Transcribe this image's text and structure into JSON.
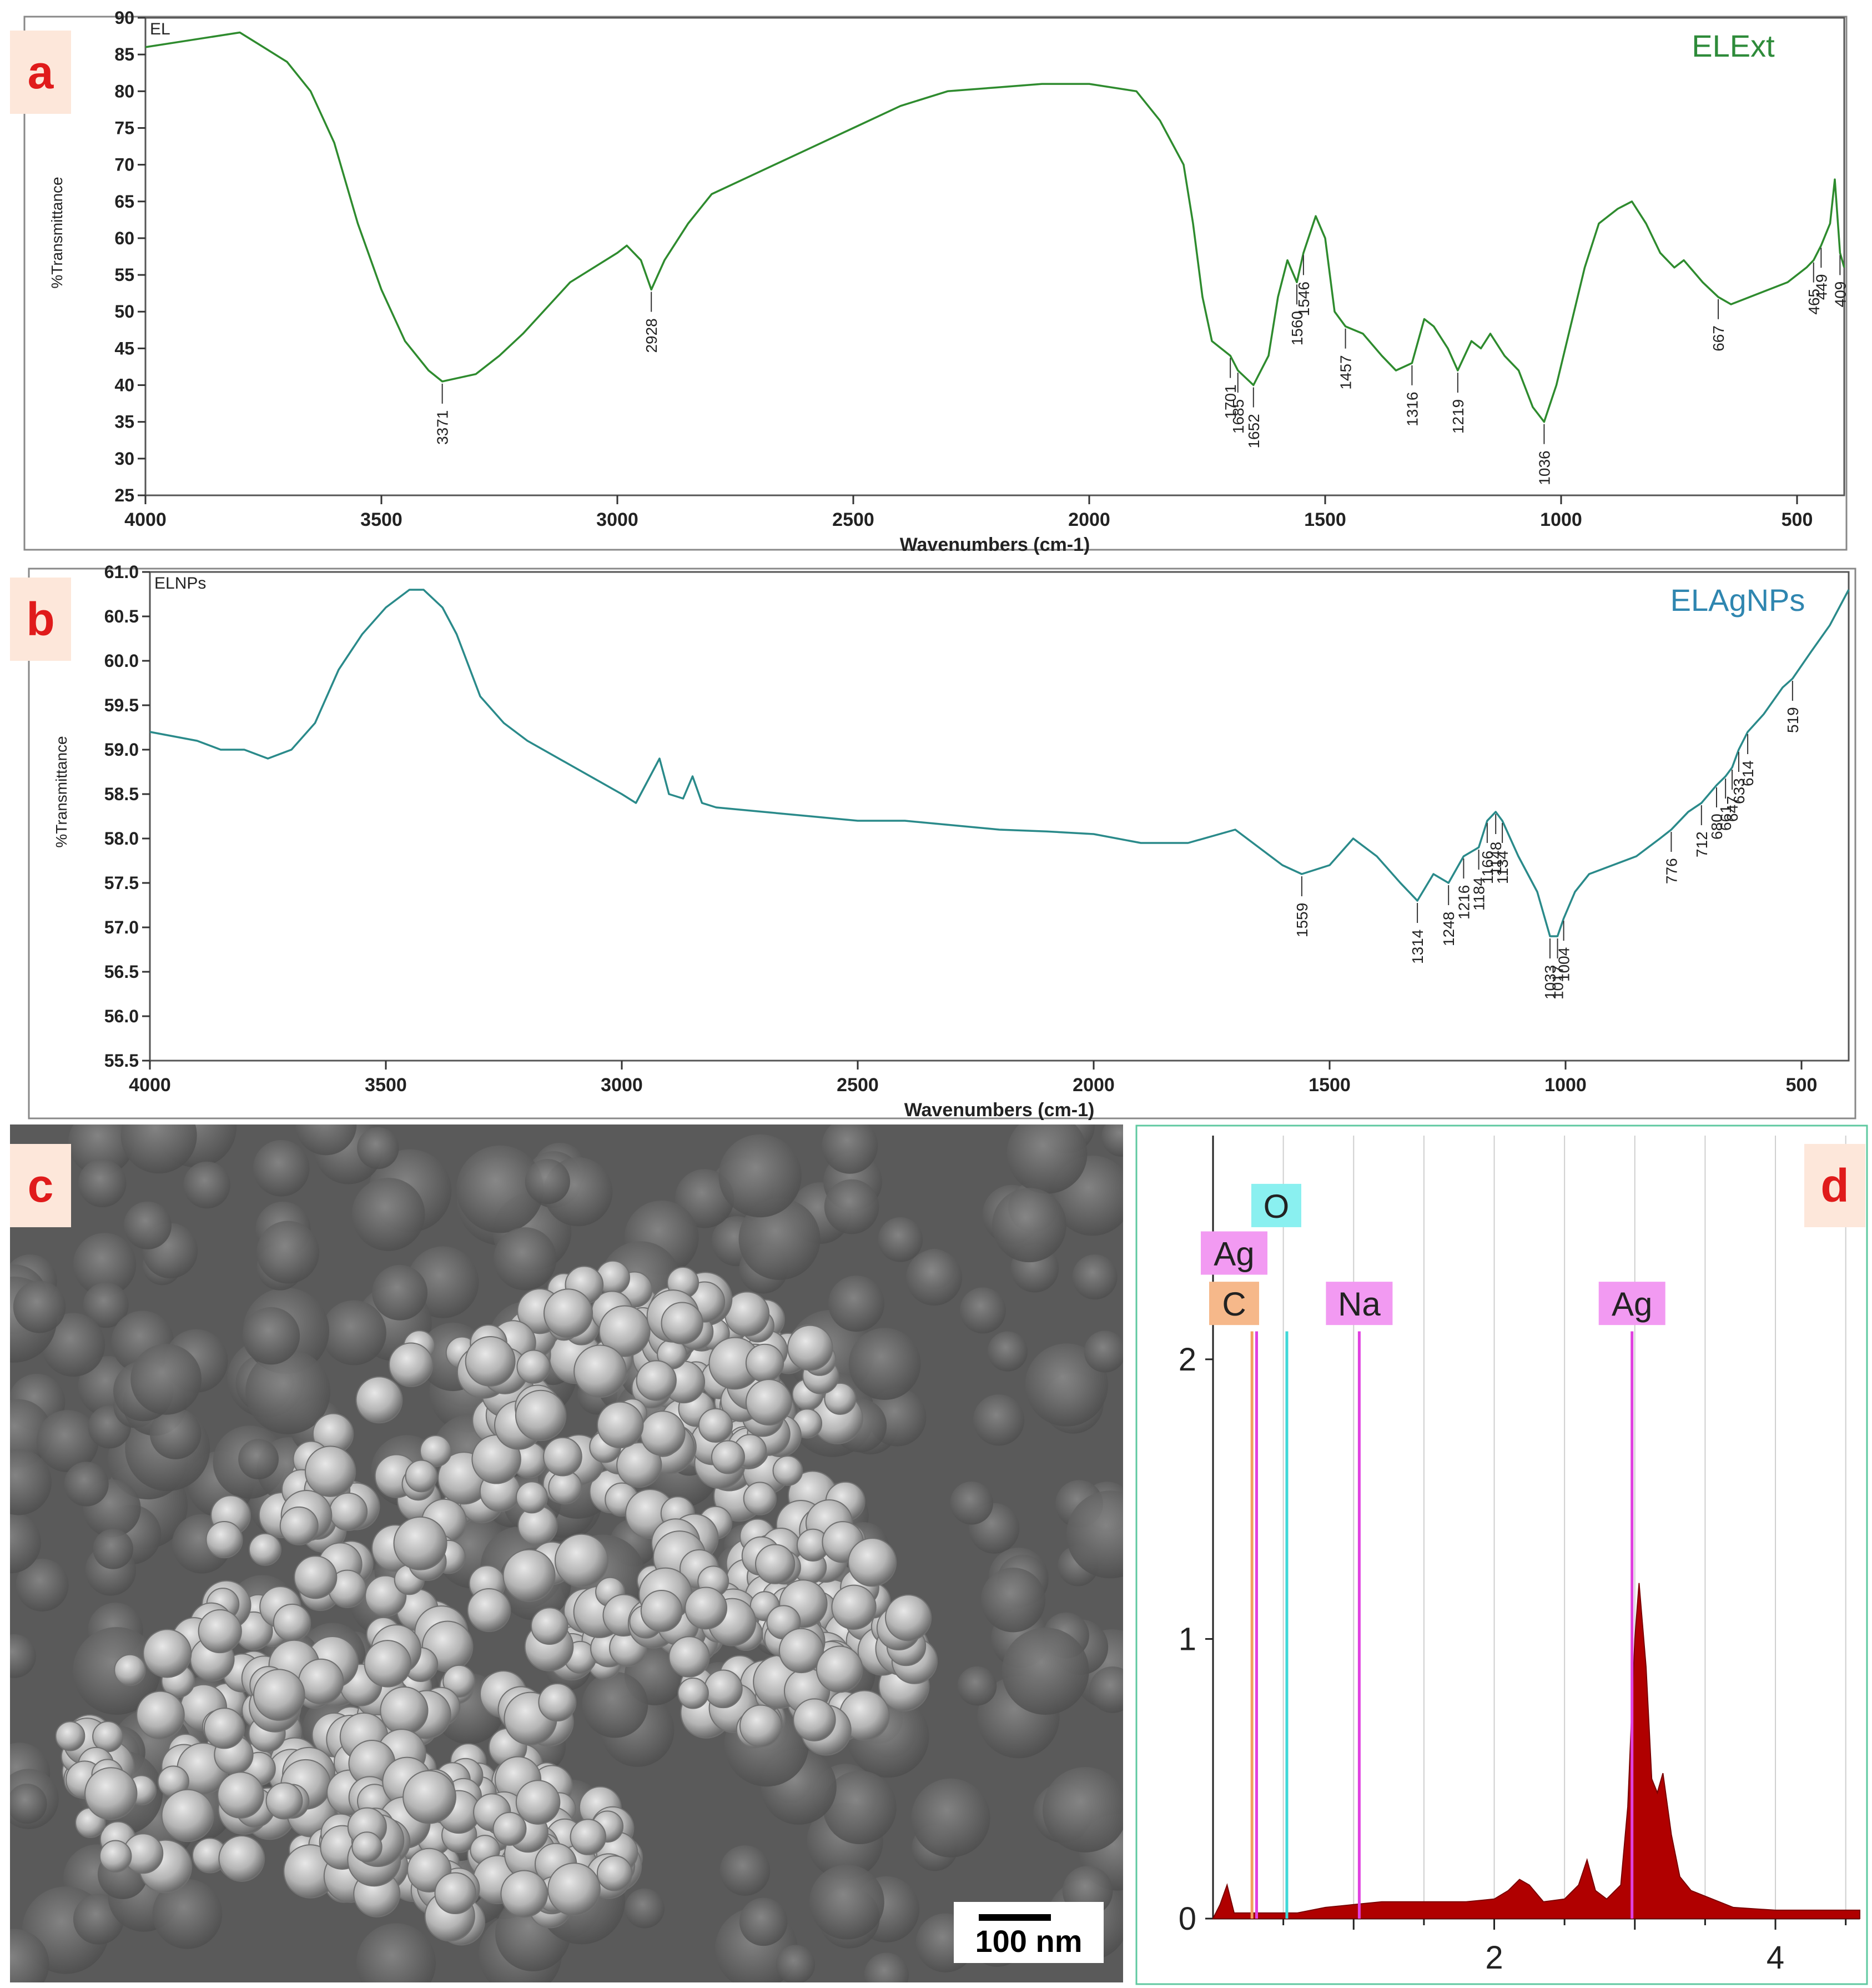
{
  "panels": {
    "a": {
      "tag": "a"
    },
    "b": {
      "tag": "b"
    },
    "c": {
      "tag": "c",
      "scale_bar": "100 nm"
    },
    "d": {
      "tag": "d"
    }
  },
  "colors": {
    "ftir_a": "#2e8b2e",
    "ftir_b": "#2a8a8a",
    "label_a": "#2e8b3a",
    "label_b": "#2f86b0",
    "tag_bg": "#fde7da",
    "tag_text": "#e01b1b",
    "eds_fill": "#b00000",
    "peak_magenta": "#e040e0",
    "peak_cyan": "#3fd8d8",
    "peak_orange": "#f2a05f",
    "box_magenta": "#f29af2",
    "box_cyan": "#8af0f0",
    "box_orange": "#f6b88a"
  },
  "chart_data": [
    {
      "type": "line",
      "panel": "a",
      "corner_label": "EL",
      "series_label": "ELExt",
      "xlabel": "Wavenumbers (cm-1)",
      "ylabel": "%Transmittance",
      "xlim": [
        4000,
        400
      ],
      "ylim": [
        25,
        90
      ],
      "x_reversed": true,
      "xticks": [
        4000,
        3500,
        3000,
        2500,
        2000,
        1500,
        1000,
        500
      ],
      "yticks": [
        25,
        30,
        35,
        40,
        45,
        50,
        55,
        60,
        65,
        70,
        75,
        80,
        85,
        90
      ],
      "curve": [
        [
          4000,
          86
        ],
        [
          3900,
          87
        ],
        [
          3800,
          88
        ],
        [
          3750,
          86
        ],
        [
          3700,
          84
        ],
        [
          3650,
          80
        ],
        [
          3600,
          73
        ],
        [
          3550,
          62
        ],
        [
          3500,
          53
        ],
        [
          3450,
          46
        ],
        [
          3400,
          42
        ],
        [
          3371,
          40.5
        ],
        [
          3300,
          41.5
        ],
        [
          3250,
          44
        ],
        [
          3200,
          47
        ],
        [
          3100,
          54
        ],
        [
          3000,
          58
        ],
        [
          2980,
          59
        ],
        [
          2950,
          57
        ],
        [
          2928,
          53
        ],
        [
          2900,
          57
        ],
        [
          2850,
          62
        ],
        [
          2800,
          66
        ],
        [
          2700,
          69
        ],
        [
          2600,
          72
        ],
        [
          2500,
          75
        ],
        [
          2400,
          78
        ],
        [
          2300,
          80
        ],
        [
          2200,
          80.5
        ],
        [
          2100,
          81
        ],
        [
          2000,
          81
        ],
        [
          1900,
          80
        ],
        [
          1850,
          76
        ],
        [
          1800,
          70
        ],
        [
          1780,
          62
        ],
        [
          1760,
          52
        ],
        [
          1740,
          46
        ],
        [
          1701,
          44
        ],
        [
          1685,
          42
        ],
        [
          1652,
          40
        ],
        [
          1620,
          44
        ],
        [
          1600,
          52
        ],
        [
          1580,
          57
        ],
        [
          1560,
          54
        ],
        [
          1546,
          58
        ],
        [
          1520,
          63
        ],
        [
          1500,
          60
        ],
        [
          1480,
          50
        ],
        [
          1457,
          48
        ],
        [
          1420,
          47
        ],
        [
          1380,
          44
        ],
        [
          1350,
          42
        ],
        [
          1316,
          43
        ],
        [
          1290,
          49
        ],
        [
          1270,
          48
        ],
        [
          1240,
          45
        ],
        [
          1219,
          42
        ],
        [
          1190,
          46
        ],
        [
          1170,
          45
        ],
        [
          1150,
          47
        ],
        [
          1120,
          44
        ],
        [
          1090,
          42
        ],
        [
          1060,
          37
        ],
        [
          1036,
          35
        ],
        [
          1010,
          40
        ],
        [
          980,
          48
        ],
        [
          950,
          56
        ],
        [
          920,
          62
        ],
        [
          880,
          64
        ],
        [
          850,
          65
        ],
        [
          820,
          62
        ],
        [
          790,
          58
        ],
        [
          760,
          56
        ],
        [
          740,
          57
        ],
        [
          700,
          54
        ],
        [
          667,
          52
        ],
        [
          640,
          51
        ],
        [
          600,
          52
        ],
        [
          560,
          53
        ],
        [
          520,
          54
        ],
        [
          480,
          56
        ],
        [
          465,
          57
        ],
        [
          449,
          59
        ],
        [
          430,
          62
        ],
        [
          420,
          68
        ],
        [
          409,
          58
        ],
        [
          400,
          56
        ]
      ],
      "peak_labels": [
        "3371",
        "2928",
        "1701",
        "1685",
        "1652",
        "1560",
        "1546",
        "1457",
        "1316",
        "1219",
        "1036",
        "667",
        "465",
        "449",
        "409"
      ],
      "peak_x": [
        3371,
        2928,
        1701,
        1685,
        1652,
        1560,
        1546,
        1457,
        1316,
        1219,
        1036,
        667,
        465,
        449,
        409
      ]
    },
    {
      "type": "line",
      "panel": "b",
      "corner_label": "ELNPs",
      "series_label": "ELAgNPs",
      "xlabel": "Wavenumbers (cm-1)",
      "ylabel": "%Transmittance",
      "xlim": [
        4000,
        400
      ],
      "ylim": [
        55.5,
        61.0
      ],
      "x_reversed": true,
      "xticks": [
        4000,
        3500,
        3000,
        2500,
        2000,
        1500,
        1000,
        500
      ],
      "yticks": [
        55.5,
        56.0,
        56.5,
        57.0,
        57.5,
        58.0,
        58.5,
        59.0,
        59.5,
        60.0,
        60.5,
        61.0
      ],
      "curve": [
        [
          4000,
          59.2
        ],
        [
          3900,
          59.1
        ],
        [
          3850,
          59.0
        ],
        [
          3800,
          59.0
        ],
        [
          3750,
          58.9
        ],
        [
          3700,
          59.0
        ],
        [
          3650,
          59.3
        ],
        [
          3600,
          59.9
        ],
        [
          3550,
          60.3
        ],
        [
          3500,
          60.6
        ],
        [
          3450,
          60.8
        ],
        [
          3420,
          60.8
        ],
        [
          3380,
          60.6
        ],
        [
          3350,
          60.3
        ],
        [
          3300,
          59.6
        ],
        [
          3250,
          59.3
        ],
        [
          3200,
          59.1
        ],
        [
          3100,
          58.8
        ],
        [
          3000,
          58.5
        ],
        [
          2970,
          58.4
        ],
        [
          2950,
          58.6
        ],
        [
          2920,
          58.9
        ],
        [
          2900,
          58.5
        ],
        [
          2870,
          58.45
        ],
        [
          2850,
          58.7
        ],
        [
          2830,
          58.4
        ],
        [
          2800,
          58.35
        ],
        [
          2700,
          58.3
        ],
        [
          2600,
          58.25
        ],
        [
          2500,
          58.2
        ],
        [
          2400,
          58.2
        ],
        [
          2300,
          58.15
        ],
        [
          2200,
          58.1
        ],
        [
          2100,
          58.08
        ],
        [
          2000,
          58.05
        ],
        [
          1900,
          57.95
        ],
        [
          1800,
          57.95
        ],
        [
          1700,
          58.1
        ],
        [
          1650,
          57.9
        ],
        [
          1600,
          57.7
        ],
        [
          1559,
          57.6
        ],
        [
          1500,
          57.7
        ],
        [
          1450,
          58.0
        ],
        [
          1400,
          57.8
        ],
        [
          1350,
          57.5
        ],
        [
          1314,
          57.3
        ],
        [
          1280,
          57.6
        ],
        [
          1248,
          57.5
        ],
        [
          1216,
          57.8
        ],
        [
          1184,
          57.9
        ],
        [
          1166,
          58.2
        ],
        [
          1148,
          58.3
        ],
        [
          1134,
          58.2
        ],
        [
          1100,
          57.8
        ],
        [
          1060,
          57.4
        ],
        [
          1033,
          56.9
        ],
        [
          1017,
          56.9
        ],
        [
          1004,
          57.1
        ],
        [
          980,
          57.4
        ],
        [
          950,
          57.6
        ],
        [
          900,
          57.7
        ],
        [
          850,
          57.8
        ],
        [
          800,
          58.0
        ],
        [
          776,
          58.1
        ],
        [
          740,
          58.3
        ],
        [
          712,
          58.4
        ],
        [
          680,
          58.6
        ],
        [
          661,
          58.7
        ],
        [
          647,
          58.8
        ],
        [
          633,
          59.0
        ],
        [
          614,
          59.2
        ],
        [
          580,
          59.4
        ],
        [
          540,
          59.7
        ],
        [
          519,
          59.8
        ],
        [
          480,
          60.1
        ],
        [
          440,
          60.4
        ],
        [
          420,
          60.6
        ],
        [
          400,
          60.8
        ]
      ],
      "peak_labels": [
        "1559",
        "1314",
        "1248",
        "1216",
        "1184",
        "1166",
        "1148",
        "1134",
        "1033",
        "1017",
        "1004",
        "776",
        "712",
        "680",
        "661",
        "647",
        "633",
        "614",
        "519"
      ],
      "peak_x": [
        1559,
        1314,
        1248,
        1216,
        1184,
        1166,
        1148,
        1134,
        1033,
        1017,
        1004,
        776,
        712,
        680,
        661,
        647,
        633,
        614,
        519
      ]
    },
    {
      "type": "area",
      "panel": "d",
      "xlim": [
        0.0,
        4.6
      ],
      "ylim": [
        0,
        2.8
      ],
      "xticks": [
        2,
        4
      ],
      "yticks": [
        0,
        1,
        2
      ],
      "spectrum": [
        [
          0.0,
          0.0
        ],
        [
          0.05,
          0.05
        ],
        [
          0.1,
          0.12
        ],
        [
          0.15,
          0.02
        ],
        [
          0.3,
          0.02
        ],
        [
          0.6,
          0.02
        ],
        [
          0.8,
          0.04
        ],
        [
          1.0,
          0.05
        ],
        [
          1.2,
          0.06
        ],
        [
          1.5,
          0.06
        ],
        [
          1.8,
          0.06
        ],
        [
          2.0,
          0.07
        ],
        [
          2.1,
          0.1
        ],
        [
          2.18,
          0.14
        ],
        [
          2.25,
          0.12
        ],
        [
          2.35,
          0.06
        ],
        [
          2.5,
          0.07
        ],
        [
          2.6,
          0.12
        ],
        [
          2.66,
          0.21
        ],
        [
          2.72,
          0.1
        ],
        [
          2.8,
          0.07
        ],
        [
          2.9,
          0.12
        ],
        [
          2.95,
          0.4
        ],
        [
          3.0,
          1.0
        ],
        [
          3.03,
          1.2
        ],
        [
          3.08,
          0.9
        ],
        [
          3.12,
          0.5
        ],
        [
          3.16,
          0.45
        ],
        [
          3.2,
          0.52
        ],
        [
          3.26,
          0.3
        ],
        [
          3.32,
          0.15
        ],
        [
          3.4,
          0.1
        ],
        [
          3.5,
          0.08
        ],
        [
          3.7,
          0.04
        ],
        [
          4.0,
          0.03
        ],
        [
          4.3,
          0.03
        ],
        [
          4.6,
          0.03
        ]
      ],
      "element_lines": [
        {
          "element": "C",
          "energy": 0.277,
          "height": 2.1,
          "color": "#f2a05f"
        },
        {
          "element": "Ag",
          "energy": 0.31,
          "height": 2.1,
          "color": "#e040e0"
        },
        {
          "element": "O",
          "energy": 0.525,
          "height": 2.1,
          "color": "#3fd8d8"
        },
        {
          "element": "Na",
          "energy": 1.04,
          "height": 2.1,
          "color": "#e040e0"
        },
        {
          "element": "Ag",
          "energy": 2.98,
          "height": 2.1,
          "color": "#e040e0"
        }
      ],
      "labels": [
        {
          "text": "O",
          "energy": 0.45,
          "level": 2.55,
          "box": "#8af0f0"
        },
        {
          "text": "Ag",
          "energy": 0.15,
          "level": 2.38,
          "box": "#f29af2"
        },
        {
          "text": "C",
          "energy": 0.15,
          "level": 2.2,
          "box": "#f6b88a"
        },
        {
          "text": "Na",
          "energy": 1.04,
          "level": 2.2,
          "box": "#f29af2"
        },
        {
          "text": "Ag",
          "energy": 2.98,
          "level": 2.2,
          "box": "#f29af2"
        }
      ]
    }
  ]
}
